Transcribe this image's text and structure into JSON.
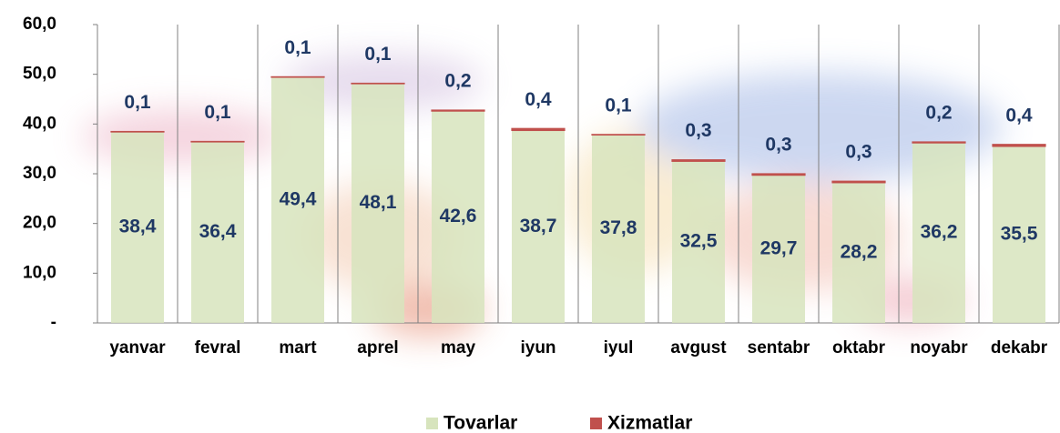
{
  "chart_data": {
    "type": "stacked-bar",
    "categories": [
      "yanvar",
      "fevral",
      "mart",
      "aprel",
      "may",
      "iyun",
      "iyul",
      "avgust",
      "sentabr",
      "oktabr",
      "noyabr",
      "dekabr"
    ],
    "series": [
      {
        "name": "Tovarlar",
        "color": "#d7e4bd",
        "values": [
          38.4,
          36.4,
          49.4,
          48.1,
          42.6,
          38.7,
          37.8,
          32.5,
          29.7,
          28.2,
          36.2,
          35.5
        ],
        "value_labels": [
          "38,4",
          "36,4",
          "49,4",
          "48,1",
          "42,6",
          "38,7",
          "37,8",
          "32,5",
          "29,7",
          "28,2",
          "36,2",
          "35,5"
        ]
      },
      {
        "name": "Xizmatlar",
        "color": "#c0504d",
        "values": [
          0.1,
          0.1,
          0.1,
          0.1,
          0.2,
          0.4,
          0.1,
          0.3,
          0.3,
          0.3,
          0.2,
          0.4
        ],
        "value_labels": [
          "0,1",
          "0,1",
          "0,1",
          "0,1",
          "0,2",
          "0,4",
          "0,1",
          "0,3",
          "0,3",
          "0,3",
          "0,2",
          "0,4"
        ]
      }
    ],
    "ylim": [
      0,
      60
    ],
    "yticks": [
      {
        "value": 0,
        "label": "-"
      },
      {
        "value": 10,
        "label": "10,0"
      },
      {
        "value": 20,
        "label": "20,0"
      },
      {
        "value": 30,
        "label": "30,0"
      },
      {
        "value": 40,
        "label": "40,0"
      },
      {
        "value": 50,
        "label": "50,0"
      },
      {
        "value": 60,
        "label": "60,0"
      }
    ],
    "legend": "bottom"
  }
}
